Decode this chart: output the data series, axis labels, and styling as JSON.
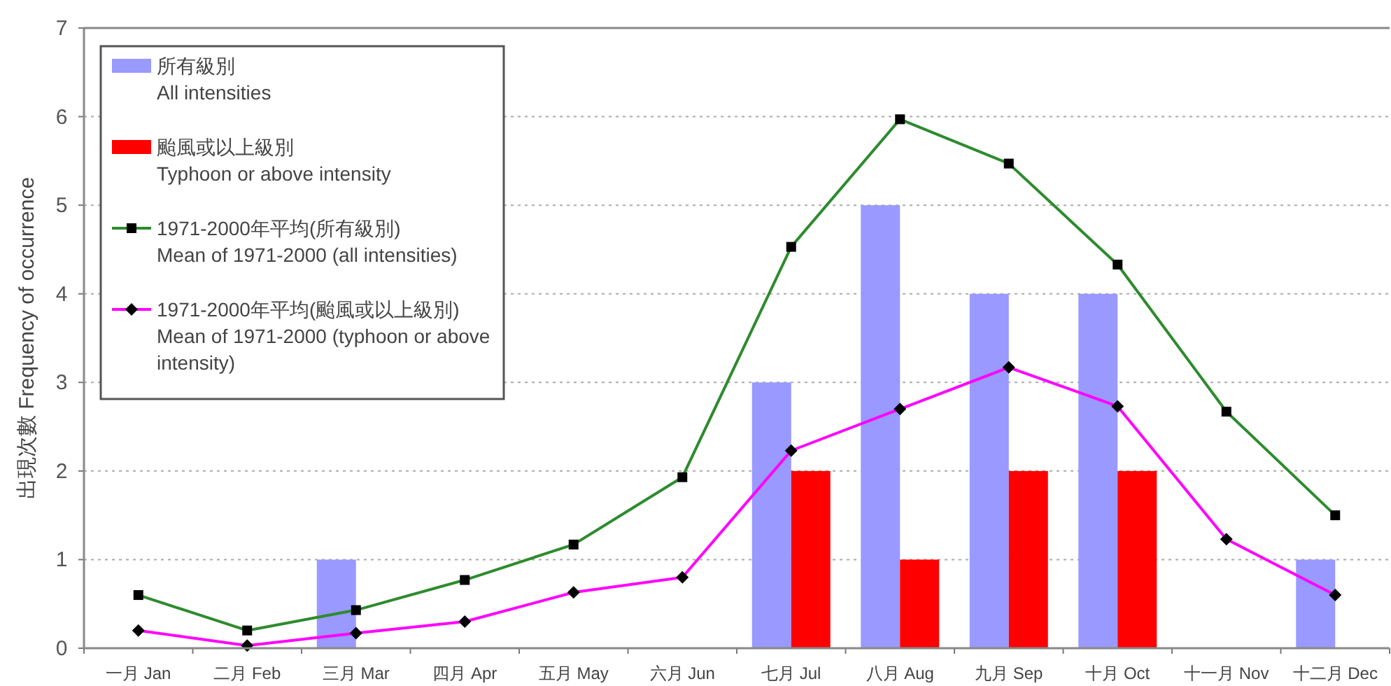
{
  "chart_data": {
    "type": "bar",
    "ylabel": "出現次數  Frequency of occurrence",
    "categories": [
      "一月 Jan",
      "二月 Feb",
      "三月 Mar",
      "四月 Apr",
      "五月 May",
      "六月 Jun",
      "七月 Jul",
      "八月 Aug",
      "九月 Sep",
      "十月 Oct",
      "十一月 Nov",
      "十二月 Dec"
    ],
    "series": [
      {
        "name": "所有級別\nAll intensities",
        "color": "#9999ff",
        "values": [
          0,
          0,
          1,
          0,
          0,
          0,
          3,
          5,
          4,
          4,
          0,
          1
        ]
      },
      {
        "name": "颱風或以上級別\nTyphoon or above intensity",
        "color": "#ff0000",
        "values": [
          0,
          0,
          0,
          0,
          0,
          0,
          2,
          1,
          2,
          2,
          0,
          0
        ]
      },
      {
        "name": "1971-2000年平均(所有級別)\nMean of 1971-2000 (all intensities)",
        "type": "line",
        "marker": "square",
        "color": "#2e8b2e",
        "values": [
          0.6,
          0.2,
          0.43,
          0.77,
          1.17,
          1.93,
          4.53,
          5.97,
          5.47,
          4.33,
          2.67,
          1.5
        ]
      },
      {
        "name": "1971-2000年平均(颱風或以上級別)\nMean of 1971-2000 (typhoon or above\nintensity)",
        "type": "line",
        "marker": "diamond",
        "color": "#ff00ff",
        "values": [
          0.2,
          0.03,
          0.17,
          0.3,
          0.63,
          0.8,
          2.23,
          2.7,
          3.17,
          2.73,
          1.23,
          0.6
        ]
      }
    ],
    "ylim": [
      0,
      7
    ],
    "yticks": [
      0,
      1,
      2,
      3,
      4,
      5,
      6,
      7
    ],
    "grid": "y",
    "legend": "top left"
  }
}
